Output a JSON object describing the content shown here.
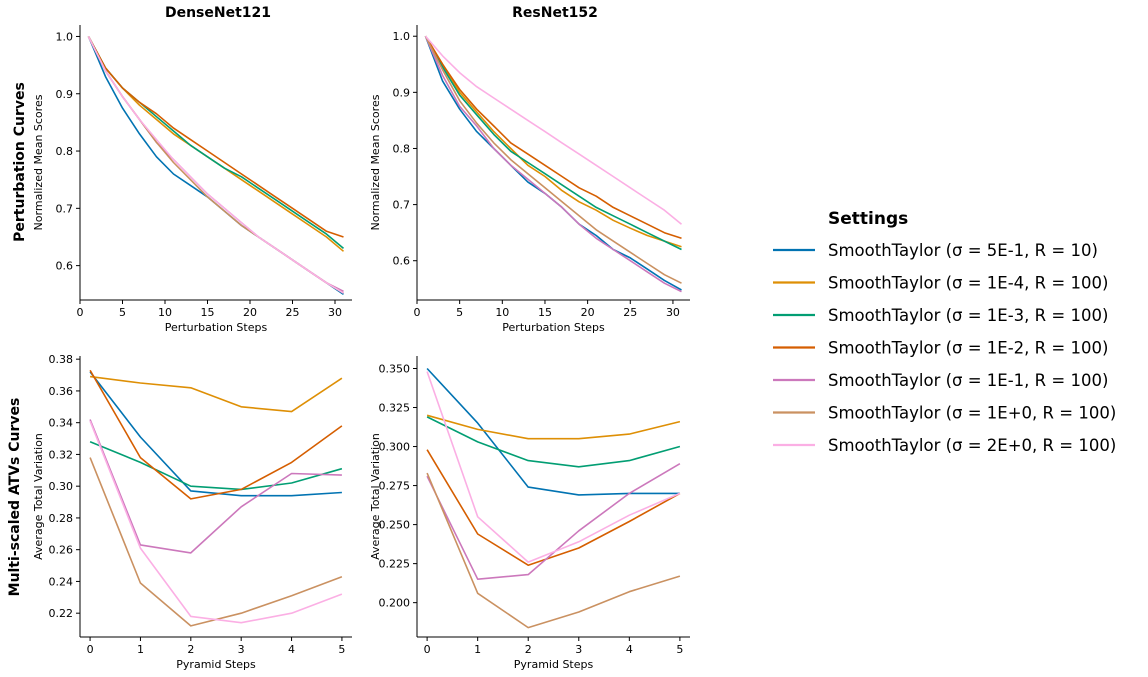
{
  "figure": {
    "col_titles": [
      "DenseNet121",
      "ResNet152"
    ],
    "row_labels": [
      "Perturbation Curves",
      "Multi-scaled ATVs Curves"
    ]
  },
  "legend": {
    "title": "Settings",
    "items": [
      {
        "text": "SmoothTaylor (σ = 5E-1, R = 10)",
        "color": "#0173b2"
      },
      {
        "text": "SmoothTaylor (σ = 1E-4, R = 100)",
        "color": "#de8f05"
      },
      {
        "text": "SmoothTaylor (σ = 1E-3, R = 100)",
        "color": "#029e73"
      },
      {
        "text": "SmoothTaylor (σ = 1E-2, R = 100)",
        "color": "#d55e00"
      },
      {
        "text": "SmoothTaylor (σ = 1E-1, R = 100)",
        "color": "#cc78bc"
      },
      {
        "text": "SmoothTaylor (σ = 1E+0, R = 100)",
        "color": "#ca9161"
      },
      {
        "text": "SmoothTaylor (σ = 2E+0, R = 100)",
        "color": "#fbafe4"
      }
    ]
  },
  "chart_data": [
    {
      "type": "line",
      "title": "DenseNet121",
      "xlabel": "Perturbation Steps",
      "ylabel": "Normalized Mean Scores",
      "xlim": [
        0,
        32
      ],
      "ylim": [
        0.54,
        1.02
      ],
      "xticks": [
        0,
        5,
        10,
        15,
        20,
        25,
        30
      ],
      "yticks": [
        0.6,
        0.7,
        0.8,
        0.9,
        1.0
      ],
      "x": [
        1,
        3,
        5,
        7,
        9,
        11,
        13,
        15,
        17,
        19,
        21,
        23,
        25,
        27,
        29,
        31
      ],
      "series": [
        {
          "values": [
            1.0,
            0.93,
            0.875,
            0.83,
            0.79,
            0.76,
            0.74,
            0.72,
            0.695,
            0.67,
            0.65,
            0.63,
            0.61,
            0.59,
            0.57,
            0.55
          ]
        },
        {
          "values": [
            1.0,
            0.945,
            0.91,
            0.88,
            0.855,
            0.83,
            0.81,
            0.79,
            0.77,
            0.75,
            0.73,
            0.71,
            0.69,
            0.67,
            0.65,
            0.625
          ]
        },
        {
          "values": [
            1.0,
            0.945,
            0.91,
            0.885,
            0.86,
            0.835,
            0.81,
            0.79,
            0.77,
            0.755,
            0.735,
            0.715,
            0.695,
            0.675,
            0.655,
            0.63
          ]
        },
        {
          "values": [
            1.0,
            0.945,
            0.91,
            0.885,
            0.865,
            0.84,
            0.82,
            0.8,
            0.78,
            0.76,
            0.74,
            0.72,
            0.7,
            0.68,
            0.66,
            0.65
          ]
        },
        {
          "values": [
            1.0,
            0.94,
            0.895,
            0.855,
            0.815,
            0.785,
            0.755,
            0.725,
            0.7,
            0.675,
            0.65,
            0.63,
            0.61,
            0.59,
            0.57,
            0.555
          ]
        },
        {
          "values": [
            1.0,
            0.94,
            0.895,
            0.855,
            0.815,
            0.78,
            0.75,
            0.72,
            0.695,
            0.67,
            0.65,
            0.63,
            0.61,
            0.59,
            0.57,
            0.552
          ]
        },
        {
          "values": [
            1.0,
            0.94,
            0.895,
            0.855,
            0.82,
            0.785,
            0.755,
            0.725,
            0.7,
            0.675,
            0.65,
            0.63,
            0.61,
            0.59,
            0.57,
            0.552
          ]
        }
      ]
    },
    {
      "type": "line",
      "title": "ResNet152",
      "xlabel": "Perturbation Steps",
      "ylabel": "Normalized Mean Scores",
      "xlim": [
        0,
        32
      ],
      "ylim": [
        0.53,
        1.02
      ],
      "xticks": [
        0,
        5,
        10,
        15,
        20,
        25,
        30
      ],
      "yticks": [
        0.6,
        0.7,
        0.8,
        0.9,
        1.0
      ],
      "x": [
        1,
        3,
        5,
        7,
        9,
        11,
        13,
        15,
        17,
        19,
        21,
        23,
        25,
        27,
        29,
        31
      ],
      "series": [
        {
          "values": [
            1.0,
            0.92,
            0.87,
            0.83,
            0.8,
            0.77,
            0.74,
            0.72,
            0.695,
            0.665,
            0.645,
            0.62,
            0.605,
            0.585,
            0.565,
            0.548
          ]
        },
        {
          "values": [
            1.0,
            0.95,
            0.9,
            0.865,
            0.83,
            0.8,
            0.77,
            0.75,
            0.725,
            0.705,
            0.69,
            0.672,
            0.658,
            0.645,
            0.635,
            0.625
          ]
        },
        {
          "values": [
            1.0,
            0.945,
            0.895,
            0.86,
            0.825,
            0.795,
            0.775,
            0.755,
            0.735,
            0.715,
            0.695,
            0.68,
            0.665,
            0.65,
            0.635,
            0.62
          ]
        },
        {
          "values": [
            1.0,
            0.95,
            0.905,
            0.87,
            0.84,
            0.81,
            0.79,
            0.77,
            0.75,
            0.73,
            0.715,
            0.695,
            0.68,
            0.665,
            0.65,
            0.64
          ]
        },
        {
          "values": [
            1.0,
            0.93,
            0.875,
            0.84,
            0.8,
            0.77,
            0.745,
            0.72,
            0.695,
            0.665,
            0.64,
            0.62,
            0.6,
            0.58,
            0.56,
            0.545
          ]
        },
        {
          "values": [
            1.0,
            0.94,
            0.885,
            0.845,
            0.81,
            0.78,
            0.755,
            0.73,
            0.705,
            0.68,
            0.655,
            0.635,
            0.615,
            0.595,
            0.575,
            0.56
          ]
        },
        {
          "values": [
            1.0,
            0.965,
            0.935,
            0.91,
            0.89,
            0.87,
            0.85,
            0.83,
            0.81,
            0.79,
            0.77,
            0.75,
            0.73,
            0.71,
            0.69,
            0.665
          ]
        }
      ]
    },
    {
      "type": "line",
      "xlabel": "Pyramid Steps",
      "ylabel": "Average Total Variation",
      "xlim": [
        -0.2,
        5.2
      ],
      "ylim": [
        0.205,
        0.382
      ],
      "xticks": [
        0,
        1,
        2,
        3,
        4,
        5
      ],
      "yticks": [
        0.22,
        0.24,
        0.26,
        0.28,
        0.3,
        0.32,
        0.34,
        0.36,
        0.38
      ],
      "x": [
        0,
        1,
        2,
        3,
        4,
        5
      ],
      "series": [
        {
          "values": [
            0.372,
            0.331,
            0.297,
            0.294,
            0.294,
            0.296
          ]
        },
        {
          "values": [
            0.369,
            0.365,
            0.362,
            0.35,
            0.347,
            0.368
          ]
        },
        {
          "values": [
            0.328,
            0.315,
            0.3,
            0.298,
            0.302,
            0.311
          ]
        },
        {
          "values": [
            0.373,
            0.318,
            0.292,
            0.298,
            0.315,
            0.338
          ]
        },
        {
          "values": [
            0.342,
            0.263,
            0.258,
            0.287,
            0.308,
            0.307
          ]
        },
        {
          "values": [
            0.318,
            0.239,
            0.212,
            0.22,
            0.231,
            0.243
          ]
        },
        {
          "values": [
            0.341,
            0.261,
            0.218,
            0.214,
            0.22,
            0.232
          ]
        }
      ]
    },
    {
      "type": "line",
      "xlabel": "Pyramid Steps",
      "ylabel": "Average Total Variation",
      "xlim": [
        -0.2,
        5.2
      ],
      "ylim": [
        0.178,
        0.358
      ],
      "xticks": [
        0,
        1,
        2,
        3,
        4,
        5
      ],
      "yticks": [
        0.2,
        0.225,
        0.25,
        0.275,
        0.3,
        0.325,
        0.35
      ],
      "x": [
        0,
        1,
        2,
        3,
        4,
        5
      ],
      "series": [
        {
          "values": [
            0.35,
            0.315,
            0.274,
            0.269,
            0.27,
            0.27
          ]
        },
        {
          "values": [
            0.32,
            0.311,
            0.305,
            0.305,
            0.308,
            0.316
          ]
        },
        {
          "values": [
            0.319,
            0.303,
            0.291,
            0.287,
            0.291,
            0.3
          ]
        },
        {
          "values": [
            0.298,
            0.244,
            0.224,
            0.235,
            0.252,
            0.27
          ]
        },
        {
          "values": [
            0.281,
            0.215,
            0.218,
            0.246,
            0.27,
            0.289
          ]
        },
        {
          "values": [
            0.283,
            0.206,
            0.184,
            0.194,
            0.207,
            0.217
          ]
        },
        {
          "values": [
            0.348,
            0.255,
            0.226,
            0.239,
            0.256,
            0.27
          ]
        }
      ]
    }
  ]
}
